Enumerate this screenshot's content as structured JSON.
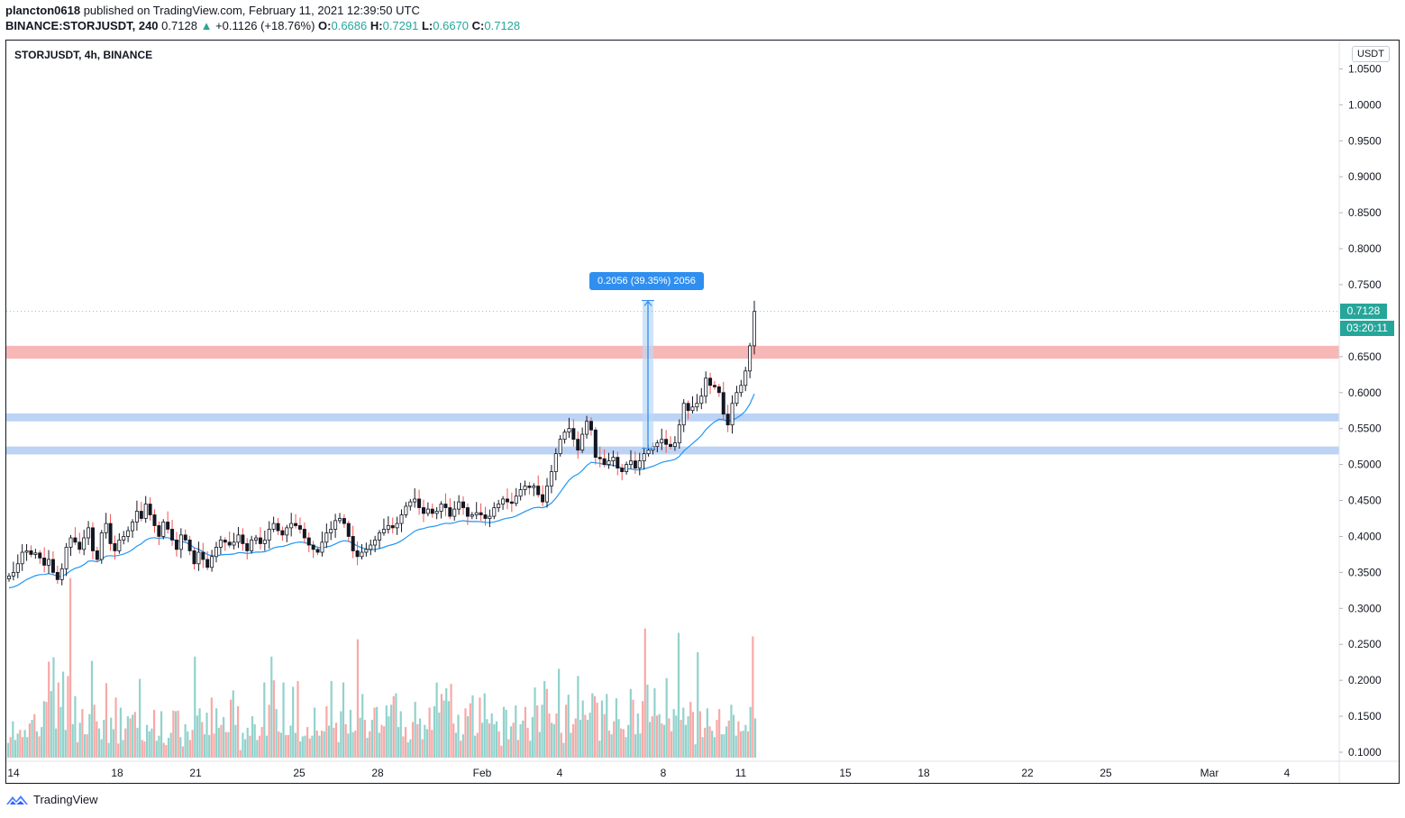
{
  "header": {
    "publisher": "plancton0618",
    "published_text": " published on TradingView.com, February 11, 2021 12:39:50 UTC",
    "symbol": "BINANCE:STORJUSDT,",
    "timeframe": "240",
    "last": "0.7128",
    "change_arrow": "▲",
    "change": "+0.1126 (+18.76%)",
    "o_label": "O:",
    "o": "0.6686",
    "h_label": "H:",
    "h": "0.7291",
    "l_label": "L:",
    "l": "0.6670",
    "c_label": "C:",
    "c": "0.7128"
  },
  "chart_title": "STORJUSDT, 4h, BINANCE",
  "currency_button": "USDT",
  "last_price_label": "0.7128",
  "countdown_label": "03:20:11",
  "measure_label": "0.2056 (39.35%) 2056",
  "brand": "TradingView",
  "colors": {
    "up": "#26a69a",
    "down": "#ef5350",
    "resistance_zone": "#f8b7b7",
    "support_zone": "#bcd3f5",
    "ma_line": "#2196f3",
    "measure": "#2f8ff0"
  },
  "chart_data": {
    "type": "candlestick",
    "title": "STORJUSDT, 4h, BINANCE",
    "y_axis": {
      "range": [
        0.075,
        1.077
      ],
      "ticks": [
        "1.0500",
        "1.0000",
        "0.9500",
        "0.9000",
        "0.8500",
        "0.8000",
        "0.7500",
        "0.7128",
        "0.6500",
        "0.6000",
        "0.5500",
        "0.5000",
        "0.4500",
        "0.4000",
        "0.3500",
        "0.3000",
        "0.2500",
        "0.2000",
        "0.1500",
        "0.1000"
      ]
    },
    "x_axis": {
      "ticks": [
        "14",
        "18",
        "21",
        "25",
        "28",
        "Feb",
        "4",
        "8",
        "11",
        "15",
        "18",
        "22",
        "25",
        "Mar",
        "4"
      ]
    },
    "zones": [
      {
        "name": "resistance",
        "from": 0.647,
        "to": 0.665
      },
      {
        "name": "support upper",
        "from": 0.56,
        "to": 0.571
      },
      {
        "name": "support lower",
        "from": 0.514,
        "to": 0.525
      }
    ],
    "measure": {
      "from": 0.5225,
      "to": 0.7281,
      "change": 0.2056,
      "percent": 39.35,
      "bars": 2056
    },
    "closes": [
      0.345,
      0.35,
      0.362,
      0.378,
      0.38,
      0.375,
      0.377,
      0.37,
      0.36,
      0.368,
      0.35,
      0.34,
      0.355,
      0.385,
      0.398,
      0.392,
      0.382,
      0.398,
      0.412,
      0.38,
      0.368,
      0.405,
      0.418,
      0.39,
      0.38,
      0.395,
      0.4,
      0.408,
      0.42,
      0.435,
      0.425,
      0.445,
      0.43,
      0.415,
      0.4,
      0.42,
      0.41,
      0.395,
      0.382,
      0.402,
      0.395,
      0.38,
      0.362,
      0.378,
      0.368,
      0.357,
      0.372,
      0.385,
      0.395,
      0.392,
      0.388,
      0.392,
      0.402,
      0.39,
      0.38,
      0.395,
      0.398,
      0.39,
      0.395,
      0.41,
      0.418,
      0.408,
      0.402,
      0.412,
      0.418,
      0.415,
      0.41,
      0.398,
      0.388,
      0.382,
      0.378,
      0.392,
      0.405,
      0.41,
      0.422,
      0.425,
      0.418,
      0.4,
      0.38,
      0.372,
      0.378,
      0.382,
      0.388,
      0.395,
      0.405,
      0.41,
      0.415,
      0.412,
      0.418,
      0.43,
      0.442,
      0.448,
      0.452,
      0.44,
      0.432,
      0.438,
      0.432,
      0.435,
      0.445,
      0.44,
      0.428,
      0.438,
      0.448,
      0.44,
      0.428,
      0.43,
      0.433,
      0.43,
      0.425,
      0.428,
      0.44,
      0.445,
      0.452,
      0.448,
      0.446,
      0.456,
      0.465,
      0.47,
      0.468,
      0.47,
      0.458,
      0.448,
      0.47,
      0.49,
      0.515,
      0.535,
      0.545,
      0.55,
      0.535,
      0.52,
      0.542,
      0.56,
      0.548,
      0.51,
      0.508,
      0.5,
      0.505,
      0.51,
      0.495,
      0.49,
      0.5,
      0.505,
      0.495,
      0.505,
      0.515,
      0.52,
      0.525,
      0.53,
      0.535,
      0.528,
      0.525,
      0.53,
      0.555,
      0.585,
      0.575,
      0.58,
      0.585,
      0.595,
      0.62,
      0.61,
      0.608,
      0.6,
      0.57,
      0.555,
      0.585,
      0.6,
      0.61,
      0.63,
      0.665,
      0.7128
    ],
    "volumes": [
      0.113,
      0.121,
      0.143,
      0.117,
      0.126,
      0.131,
      0.121,
      0.131,
      0.121,
      0.14,
      0.145,
      0.153,
      0.129,
      0.122,
      0.135,
      0.171,
      0.17,
      0.226,
      0.185,
      0.232,
      0.133,
      0.197,
      0.163,
      0.212,
      0.131,
      0.206,
      0.342,
      0.139,
      0.178,
      0.114,
      0.141,
      0.16,
      0.125,
      0.125,
      0.153,
      0.227,
      0.166,
      0.143,
      0.133,
      0.118,
      0.145,
      0.196,
      0.113,
      0.148,
      0.132,
      0.176,
      0.112,
      0.162,
      0.117,
      0.133,
      0.15,
      0.147,
      0.152,
      0.156,
      0.134,
      0.202,
      0.117,
      0.115,
      0.138,
      0.129,
      0.133,
      0.159,
      0.116,
      0.123,
      0.157,
      0.113,
      0.11,
      0.12,
      0.127,
      0.158,
      0.157,
      0.158,
      0.121,
      0.108,
      0.139,
      0.129,
      0.117,
      0.131,
      0.233,
      0.151,
      0.161,
      0.142,
      0.125,
      0.155,
      0.124,
      0.176,
      0.126,
      0.161,
      0.134,
      0.138,
      0.149,
      0.128,
      0.128,
      0.173,
      0.186,
      0.138,
      0.164,
      0.103,
      0.127,
      0.118,
      0.134,
      0.123,
      0.15,
      0.139,
      0.117,
      0.123,
      0.135,
      0.197,
      0.123,
      0.166,
      0.233,
      0.2,
      0.16,
      0.129,
      0.127,
      0.197,
      0.124,
      0.124,
      0.137,
      0.191,
      0.127,
      0.199,
      0.115,
      0.122,
      0.123,
      0.135,
      0.119,
      0.123,
      0.162,
      0.13,
      0.123,
      0.13,
      0.129,
      0.164,
      0.137,
      0.199,
      0.134,
      0.141,
      0.114,
      0.157,
      0.197,
      0.139,
      0.126,
      0.159,
      0.128,
      0.13,
      0.257,
      0.148,
      0.181,
      0.145,
      0.12,
      0.129,
      0.145,
      0.162,
      0.163,
      0.127,
      0.138,
      0.136,
      0.165,
      0.15,
      0.166,
      0.178,
      0.182,
      0.135,
      0.157,
      0.122,
      0.135,
      0.114,
      0.118,
      0.142,
      0.17,
      0.139,
      0.147,
      0.118,
      0.138,
      0.132,
      0.162,
      0.131,
      0.164,
      0.197,
      0.155,
      0.181,
      0.172,
      0.189,
      0.171,
      0.195,
      0.14,
      0.127,
      0.152,
      0.116,
      0.125,
      0.161,
      0.15,
      0.168,
      0.179,
      0.123,
      0.127,
      0.176,
      0.141,
      0.182,
      0.146,
      0.14,
      0.154,
      0.139,
      0.143,
      0.129,
      0.109,
      0.163,
      0.159,
      0.118,
      0.136,
      0.141,
      0.165,
      0.117,
      0.139,
      0.144,
      0.163,
      0.134,
      0.116,
      0.149,
      0.19,
      0.165,
      0.128,
      0.166,
      0.199,
      0.188,
      0.154,
      0.141,
      0.139,
      0.154,
      0.216,
      0.127,
      0.113,
      0.166,
      0.18,
      0.127,
      0.139,
      0.147,
      0.206,
      0.145,
      0.172,
      0.152,
      0.145,
      0.155,
      0.182,
      0.178,
      0.169,
      0.116,
      0.172,
      0.153,
      0.181,
      0.13,
      0.125,
      0.143,
      0.175,
      0.146,
      0.133,
      0.132,
      0.121,
      0.138,
      0.188,
      0.173,
      0.125,
      0.154,
      0.126,
      0.171,
      0.272,
      0.194,
      0.142,
      0.15,
      0.189,
      0.151,
      0.153,
      0.14,
      0.138,
      0.203,
      0.147,
      0.129,
      0.16,
      0.151,
      0.266,
      0.145,
      0.162,
      0.138,
      0.15,
      0.17,
      0.156,
      0.111,
      0.239,
      0.157,
      0.121,
      0.134,
      0.161,
      0.136,
      0.13,
      0.121,
      0.145,
      0.16,
      0.125,
      0.125,
      0.136,
      0.144,
      0.166,
      0.152,
      0.123,
      0.143,
      0.129,
      0.13,
      0.138,
      0.129,
      0.163,
      0.261,
      0.147
    ]
  }
}
